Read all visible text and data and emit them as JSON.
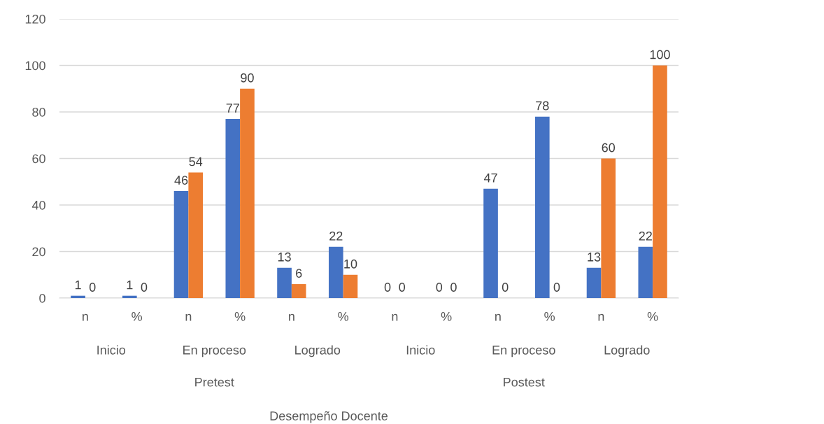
{
  "chart_data": {
    "type": "bar",
    "categories": [
      "n",
      "%",
      "n",
      "%",
      "n",
      "%",
      "n",
      "%",
      "n",
      "%",
      "n",
      "%"
    ],
    "series": [
      {
        "color": "#4472c4",
        "values": [
          1,
          1,
          46,
          77,
          13,
          22,
          0,
          0,
          47,
          78,
          13,
          22
        ]
      },
      {
        "color": "#ed7d31",
        "values": [
          0,
          0,
          54,
          90,
          6,
          10,
          0,
          0,
          0,
          0,
          60,
          100
        ]
      }
    ],
    "annotations": [
      "Inicio",
      "En proceso",
      "Logrado",
      "Inicio",
      "En proceso",
      "Logrado",
      "Pretest",
      "Postest",
      "Desempeño Docente"
    ],
    "ylim": [
      0,
      120
    ],
    "yticks": [
      0,
      20,
      40,
      60,
      80,
      100,
      120
    ],
    "grid": "y",
    "data_labels": true
  }
}
